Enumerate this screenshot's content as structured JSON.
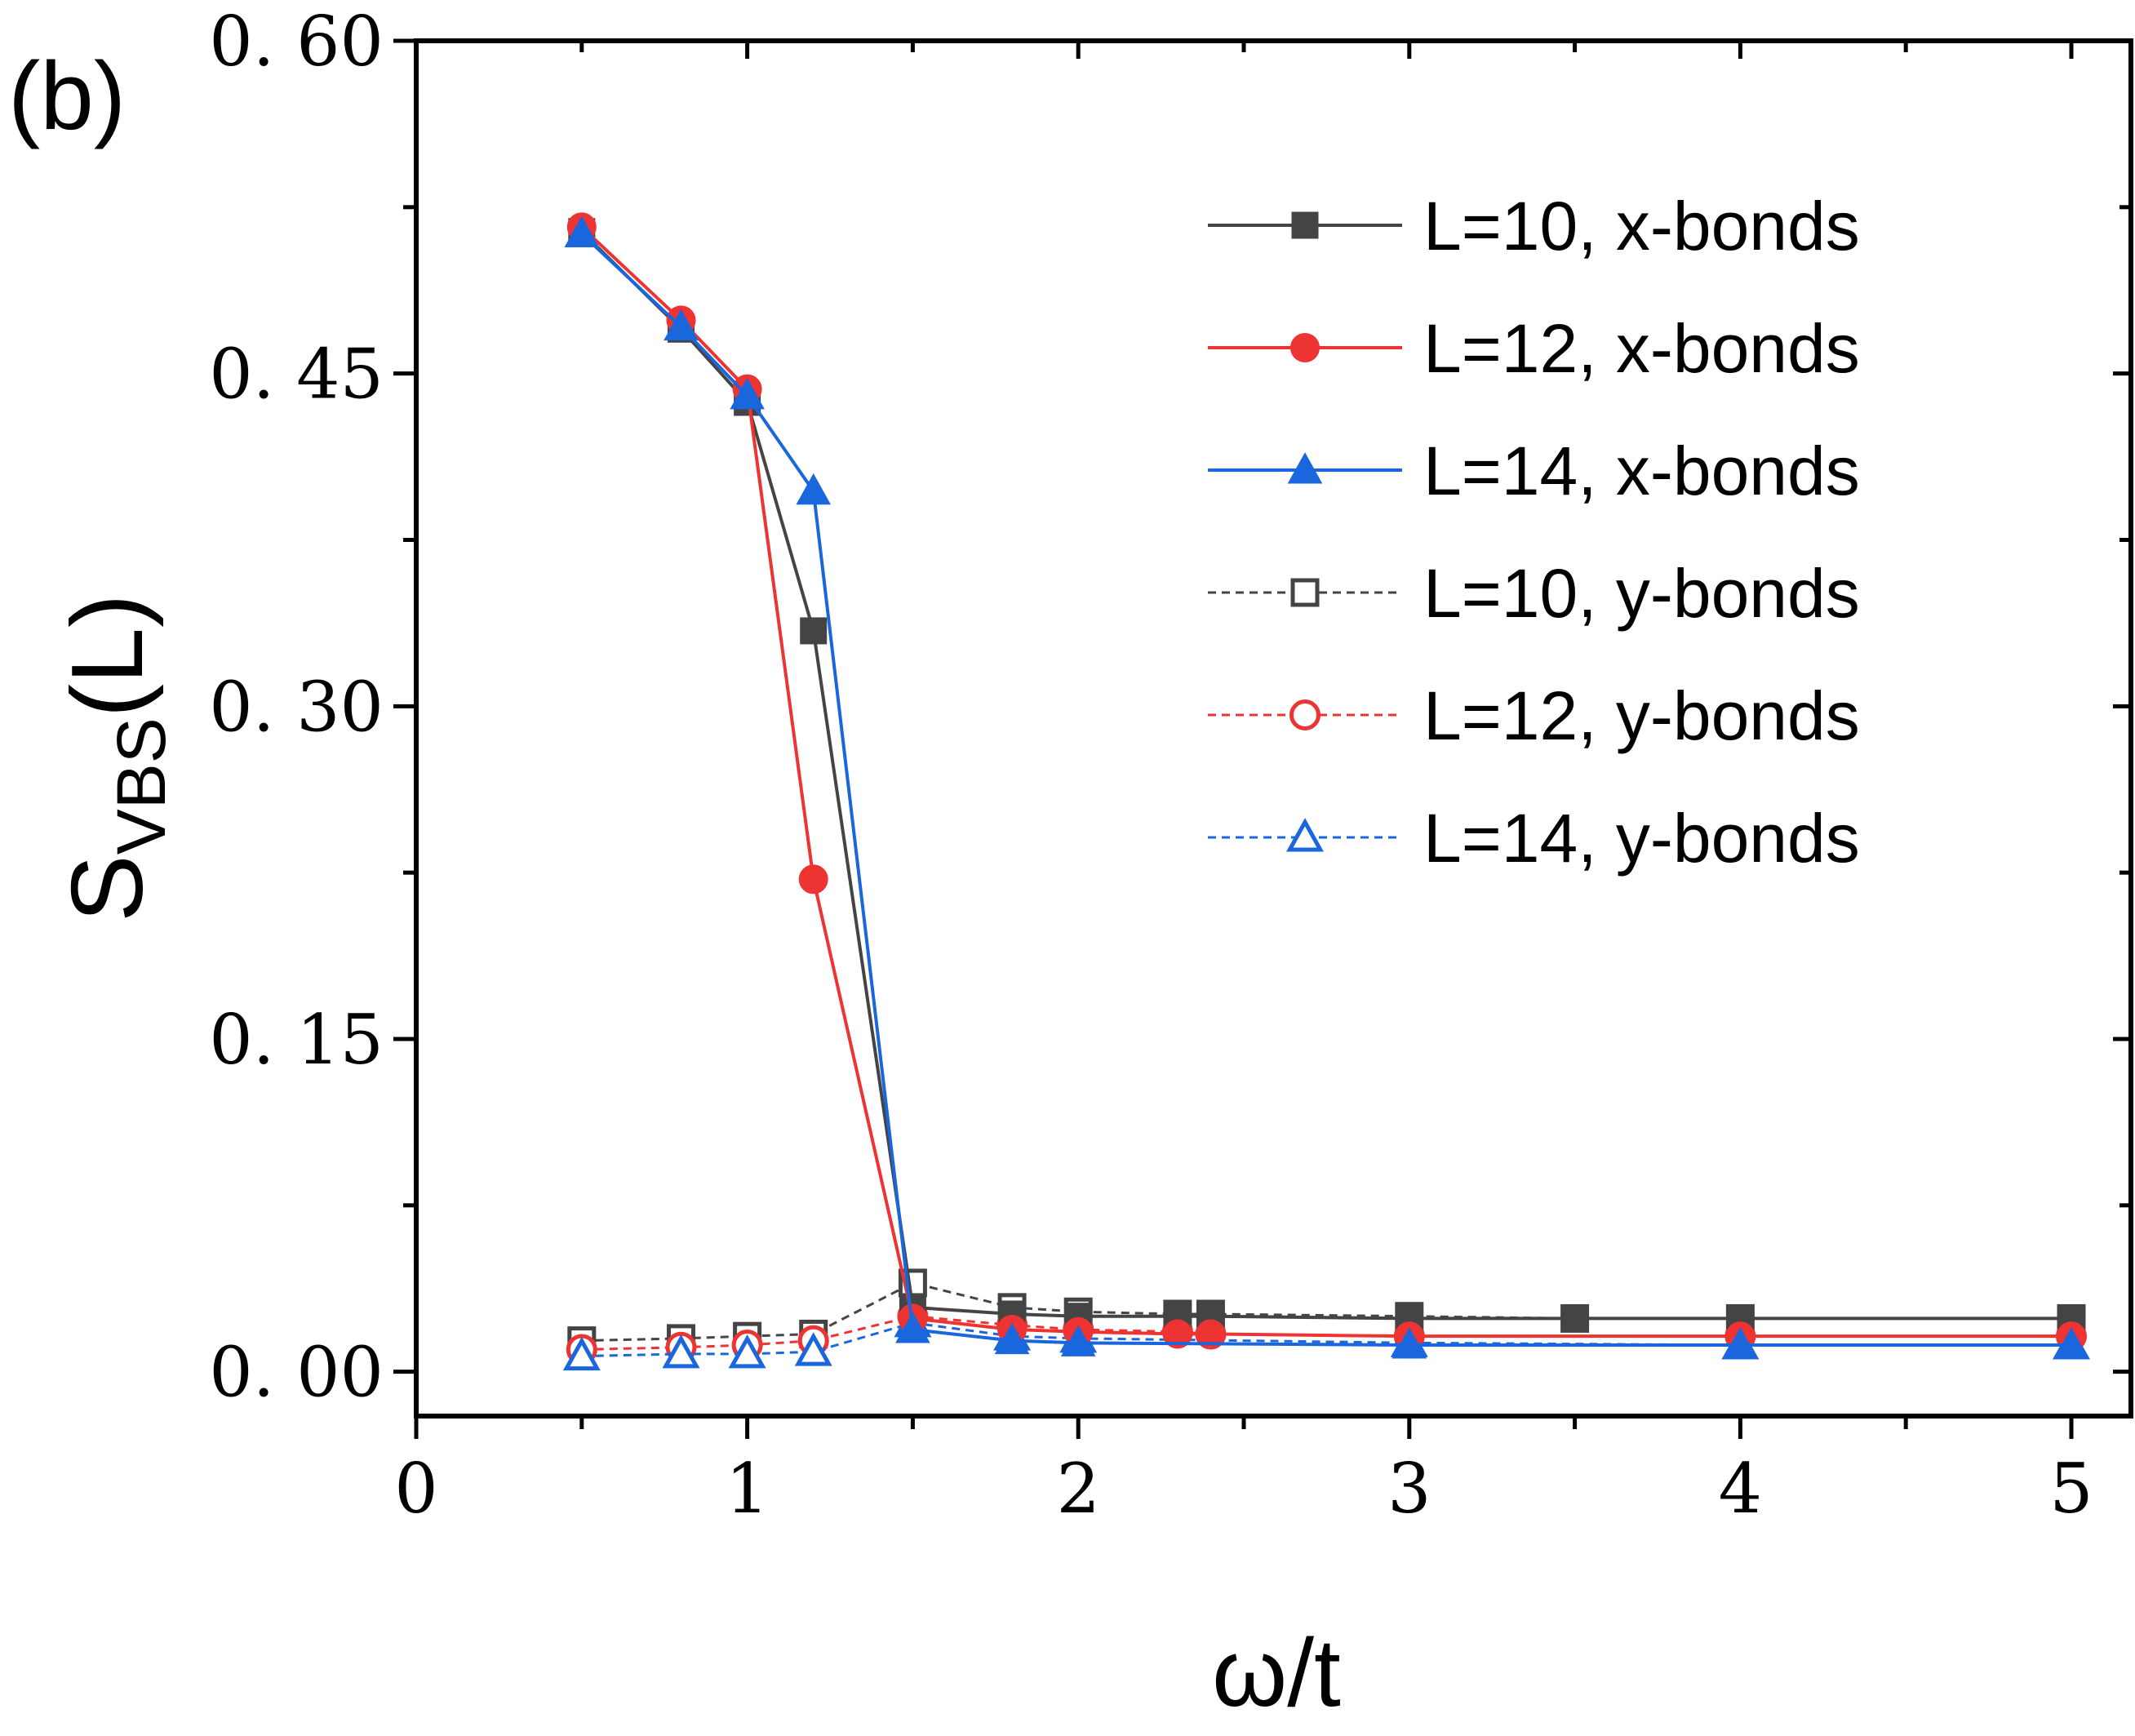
{
  "panel_label": "(b)",
  "chart_data": {
    "type": "line",
    "title": "",
    "xlabel": "ω/t",
    "ylabel": {
      "main": "S",
      "subscript": "VBS",
      "suffix": "(L)"
    },
    "xlim": [
      0,
      5.18
    ],
    "ylim": [
      -0.02,
      0.6
    ],
    "x_ticks": [
      0,
      1,
      2,
      3,
      4,
      5
    ],
    "x_tick_labels": [
      "0",
      "1",
      "2",
      "3",
      "4",
      "5"
    ],
    "y_ticks": [
      0.0,
      0.15,
      0.3,
      0.45,
      0.6
    ],
    "y_tick_labels": [
      "0. 00",
      "0. 15",
      "0. 30",
      "0. 45",
      "0. 60"
    ],
    "legend_position": "top-right",
    "grid": false,
    "series": [
      {
        "name": "L=10, x-bonds",
        "color": "#444444",
        "marker": "square",
        "filled": true,
        "dashed": false,
        "x": [
          0.5,
          0.8,
          1.0,
          1.2,
          1.5,
          1.8,
          2.0,
          2.3,
          2.4,
          3.0,
          3.5,
          4.0,
          5.0
        ],
        "y": [
          0.514,
          0.47,
          0.437,
          0.334,
          0.029,
          0.026,
          0.025,
          0.025,
          0.025,
          0.024,
          0.024,
          0.024,
          0.024
        ]
      },
      {
        "name": "L=12, x-bonds",
        "color": "#ee3333",
        "marker": "circle",
        "filled": true,
        "dashed": false,
        "x": [
          0.5,
          0.8,
          1.0,
          1.2,
          1.5,
          1.8,
          2.0,
          2.3,
          2.4,
          3.0,
          4.0,
          5.0
        ],
        "y": [
          0.516,
          0.474,
          0.443,
          0.222,
          0.024,
          0.019,
          0.018,
          0.017,
          0.017,
          0.016,
          0.016,
          0.016
        ]
      },
      {
        "name": "L=14, x-bonds",
        "color": "#1a66dd",
        "marker": "triangle",
        "filled": true,
        "dashed": false,
        "x": [
          0.5,
          0.8,
          1.0,
          1.2,
          1.5,
          1.8,
          2.0,
          3.0,
          4.0,
          5.0
        ],
        "y": [
          0.513,
          0.471,
          0.44,
          0.397,
          0.019,
          0.014,
          0.013,
          0.012,
          0.012,
          0.012
        ]
      },
      {
        "name": "L=10, y-bonds",
        "color": "#444444",
        "marker": "square",
        "filled": false,
        "dashed": true,
        "x": [
          0.5,
          0.8,
          1.0,
          1.2,
          1.5,
          1.8,
          2.0,
          2.3,
          2.4,
          3.0,
          3.5,
          4.0,
          5.0
        ],
        "y": [
          0.014,
          0.015,
          0.016,
          0.017,
          0.04,
          0.029,
          0.027,
          0.026,
          0.026,
          0.025,
          0.024,
          0.024,
          0.024
        ]
      },
      {
        "name": "L=12, y-bonds",
        "color": "#ee3333",
        "marker": "circle",
        "filled": false,
        "dashed": true,
        "x": [
          0.5,
          0.8,
          1.0,
          1.2,
          1.5,
          1.8,
          2.0,
          2.3,
          2.4,
          3.0,
          4.0,
          5.0
        ],
        "y": [
          0.01,
          0.011,
          0.012,
          0.014,
          0.025,
          0.021,
          0.019,
          0.018,
          0.017,
          0.016,
          0.016,
          0.016
        ]
      },
      {
        "name": "L=14, y-bonds",
        "color": "#1a66dd",
        "marker": "triangle",
        "filled": false,
        "dashed": true,
        "x": [
          0.5,
          0.8,
          1.0,
          1.2,
          1.5,
          1.8,
          2.0,
          3.0,
          4.0,
          5.0
        ],
        "y": [
          0.007,
          0.008,
          0.008,
          0.009,
          0.022,
          0.016,
          0.015,
          0.013,
          0.012,
          0.012
        ]
      }
    ]
  }
}
